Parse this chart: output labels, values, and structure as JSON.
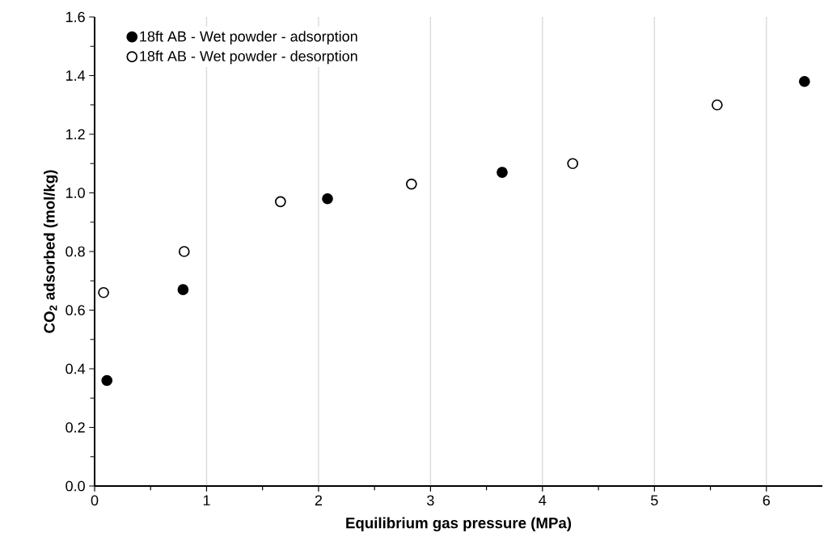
{
  "chart_data": {
    "type": "scatter",
    "xlabel": "Equilibrium gas pressure (MPa)",
    "ylabel": "CO$_{2}$ adsorbed (mol/kg)",
    "xlim": [
      0,
      6.5
    ],
    "xticks": [
      0,
      1,
      2,
      3,
      4,
      5,
      6
    ],
    "ylim": [
      0,
      1.6
    ],
    "yticks": [
      {
        "value": 0,
        "label": "0.0"
      },
      {
        "value": 0.2,
        "label": "0.2"
      },
      {
        "value": 0.4,
        "label": "0.4"
      },
      {
        "value": 0.6,
        "label": "0.6"
      },
      {
        "value": 0.8,
        "label": "0.8"
      },
      {
        "value": 1.0,
        "label": "1.0"
      },
      {
        "value": 1.2,
        "label": "1.2"
      },
      {
        "value": 1.4,
        "label": "1.4"
      },
      {
        "value": 1.6,
        "label": "1.6"
      }
    ],
    "grid": "x",
    "legend": "top left",
    "series": [
      {
        "name": "18ft AB - Wet powder - adsorption",
        "color": "#000000",
        "x": [
          0.11,
          0.79,
          2.08,
          3.64,
          6.34
        ],
        "values": [
          0.36,
          0.67,
          0.98,
          1.07,
          1.38
        ]
      },
      {
        "name": "18ft AB - Wet powder - desorption",
        "color": "#ffffff",
        "x": [
          0.08,
          0.8,
          1.66,
          2.83,
          4.27,
          5.56
        ],
        "values": [
          0.66,
          0.8,
          0.97,
          1.03,
          1.1,
          1.3
        ]
      }
    ]
  }
}
